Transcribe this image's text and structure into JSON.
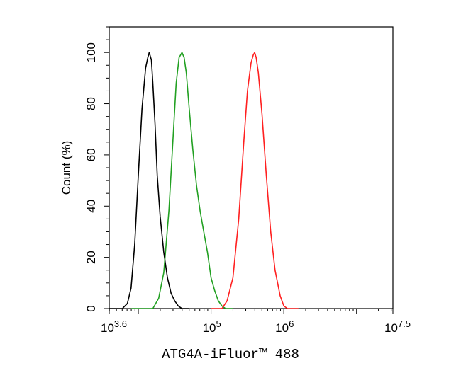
{
  "chart_data": {
    "type": "line",
    "xlabel": "ATG4A-iFluor™ 488",
    "ylabel": "Count (%)",
    "x_scale": "log10",
    "xlim_log10": [
      3.6,
      7.5
    ],
    "ylim": [
      0,
      110
    ],
    "x_ticks": [
      {
        "base": "10",
        "exp": "3.6",
        "pos": 3.6
      },
      {
        "base": "10",
        "exp": "5",
        "pos": 5
      },
      {
        "base": "10",
        "exp": "6",
        "pos": 6
      },
      {
        "base": "10",
        "exp": "7.5",
        "pos": 7.5
      }
    ],
    "y_ticks": [
      "0",
      "20",
      "40",
      "60",
      "80",
      "100"
    ],
    "grid": false,
    "legend": "none",
    "series": [
      {
        "color": "#000000",
        "x_log10": [
          3.6,
          3.78,
          3.85,
          3.9,
          3.95,
          4.0,
          4.05,
          4.1,
          4.13,
          4.15,
          4.18,
          4.2,
          4.23,
          4.26,
          4.3,
          4.35,
          4.4,
          4.45,
          4.5,
          4.55,
          4.6,
          4.7
        ],
        "values": [
          0,
          0,
          2,
          8,
          25,
          52,
          78,
          94,
          98,
          100,
          97,
          88,
          72,
          52,
          36,
          22,
          12,
          6,
          3,
          1,
          0,
          0
        ]
      },
      {
        "color": "#22a022",
        "x_log10": [
          3.9,
          4.2,
          4.28,
          4.35,
          4.42,
          4.48,
          4.52,
          4.56,
          4.6,
          4.63,
          4.66,
          4.7,
          4.75,
          4.8,
          4.85,
          4.9,
          4.95,
          5.0,
          5.05,
          5.1,
          5.15,
          5.2,
          5.3
        ],
        "values": [
          0,
          0,
          4,
          14,
          38,
          68,
          88,
          98,
          100,
          98,
          92,
          78,
          62,
          48,
          38,
          30,
          22,
          12,
          7,
          3,
          1,
          0,
          0
        ]
      },
      {
        "color": "#ff2020",
        "x_log10": [
          5.0,
          5.15,
          5.22,
          5.3,
          5.38,
          5.45,
          5.5,
          5.55,
          5.58,
          5.6,
          5.62,
          5.65,
          5.7,
          5.76,
          5.82,
          5.88,
          5.95,
          6.0,
          6.05,
          6.2
        ],
        "values": [
          0,
          0,
          3,
          12,
          35,
          65,
          85,
          96,
          99,
          100,
          98,
          92,
          76,
          52,
          30,
          15,
          5,
          1,
          0,
          0
        ]
      }
    ]
  }
}
